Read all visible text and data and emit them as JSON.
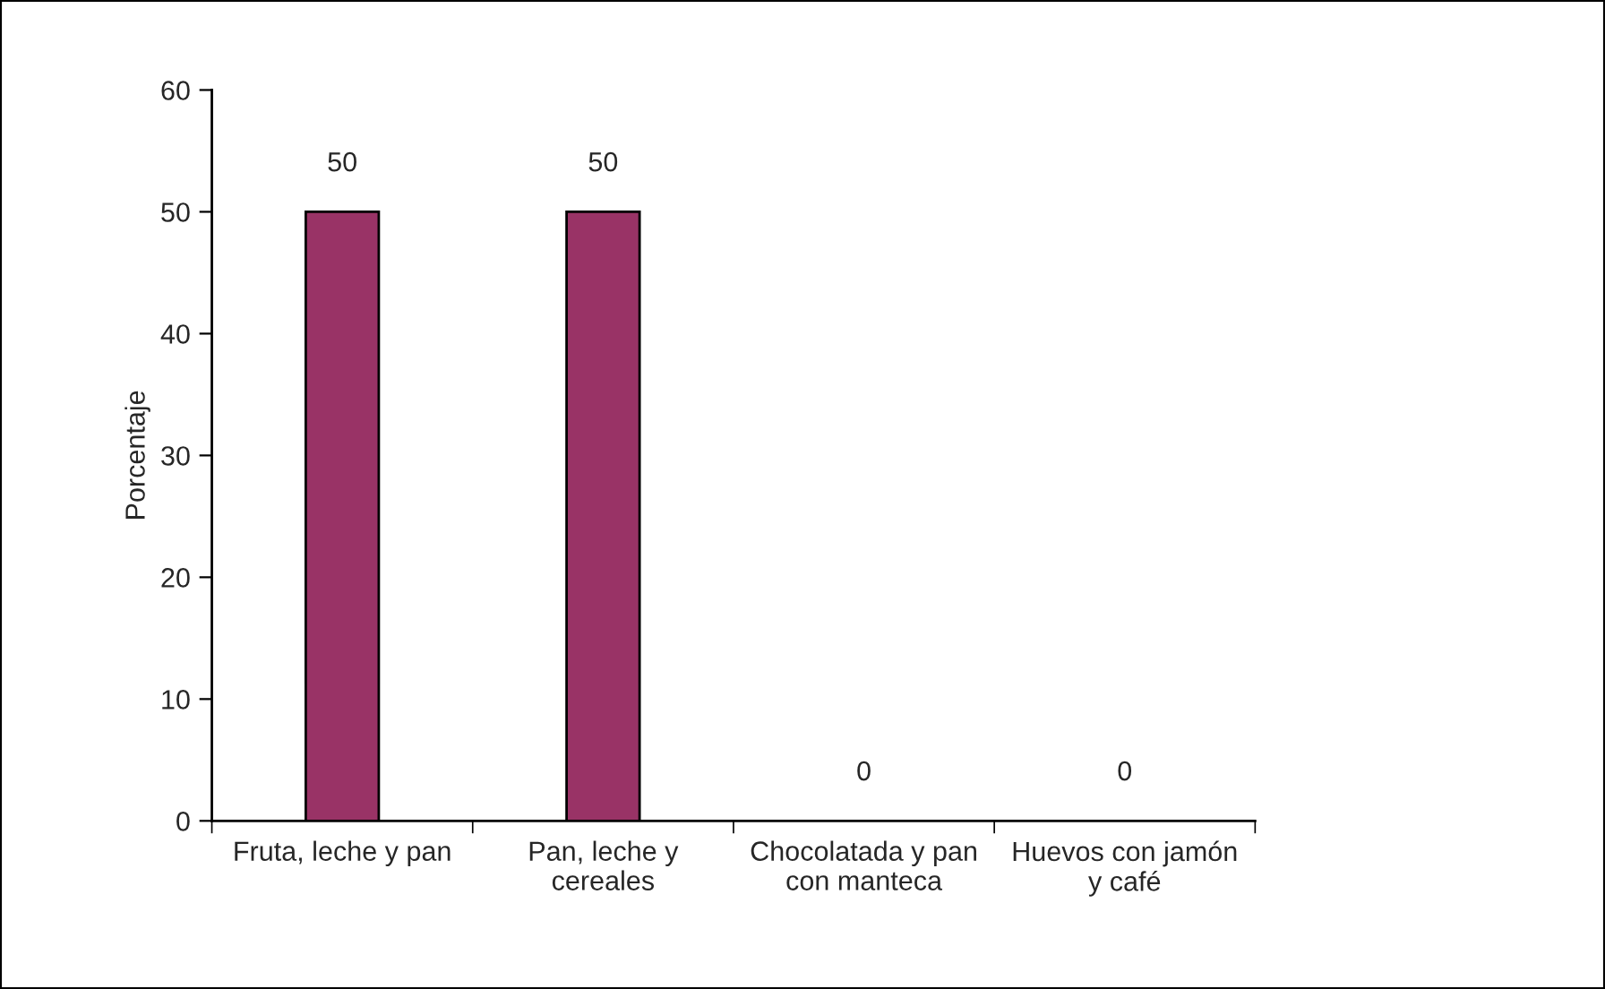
{
  "chart_data": {
    "type": "bar",
    "ylabel": "Porcentaje",
    "categories": [
      "Fruta, leche y pan",
      "Pan, leche y\ncereales",
      "Chocolatada y pan\ncon manteca",
      "Huevos con jamón\ny café"
    ],
    "values": [
      50,
      50,
      0,
      0
    ],
    "color": "#993366",
    "ylim": [
      0,
      60
    ],
    "yticks": [
      0,
      10,
      20,
      30,
      40,
      50,
      60
    ],
    "grid": false,
    "data_labels": true
  }
}
